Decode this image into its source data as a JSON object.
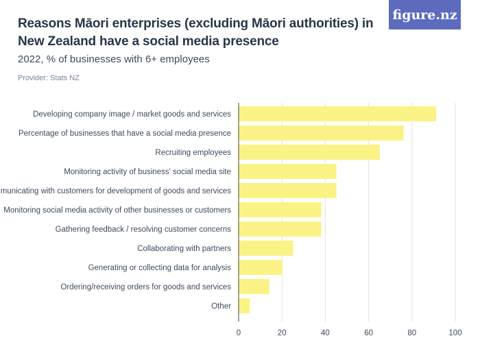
{
  "header": {
    "title": "Reasons Māori enterprises (excluding Māori authorities) in New Zealand have a social media presence",
    "subtitle": "2022, % of businesses with 6+ employees",
    "provider": "Provider: Stats NZ",
    "logo_text": "figure.nz"
  },
  "colors": {
    "bar": "#fbf285",
    "grid": "#e2e2e2",
    "axis": "#444444",
    "logo_bg": "#5d6bbf"
  },
  "chart_data": {
    "type": "bar",
    "orientation": "horizontal",
    "categories": [
      "Developing company image / market goods and services",
      "Percentage of businesses that have a social media presence",
      "Recruiting employees",
      "Monitoring activity of business' social media site",
      "Communicating with customers for development of goods and services",
      "Monitoring social media activity of other businesses or customers",
      "Gathering feedback / resolving customer concerns",
      "Collaborating with partners",
      "Generating or collecting data for analysis",
      "Ordering/receiving orders for goods and services",
      "Other"
    ],
    "values": [
      91,
      76,
      65,
      45,
      45,
      38,
      38,
      25,
      20,
      14,
      5
    ],
    "xlim": [
      0,
      100
    ],
    "xticks": [
      0,
      20,
      40,
      60,
      80,
      100
    ],
    "grid": true,
    "legend": "none"
  }
}
